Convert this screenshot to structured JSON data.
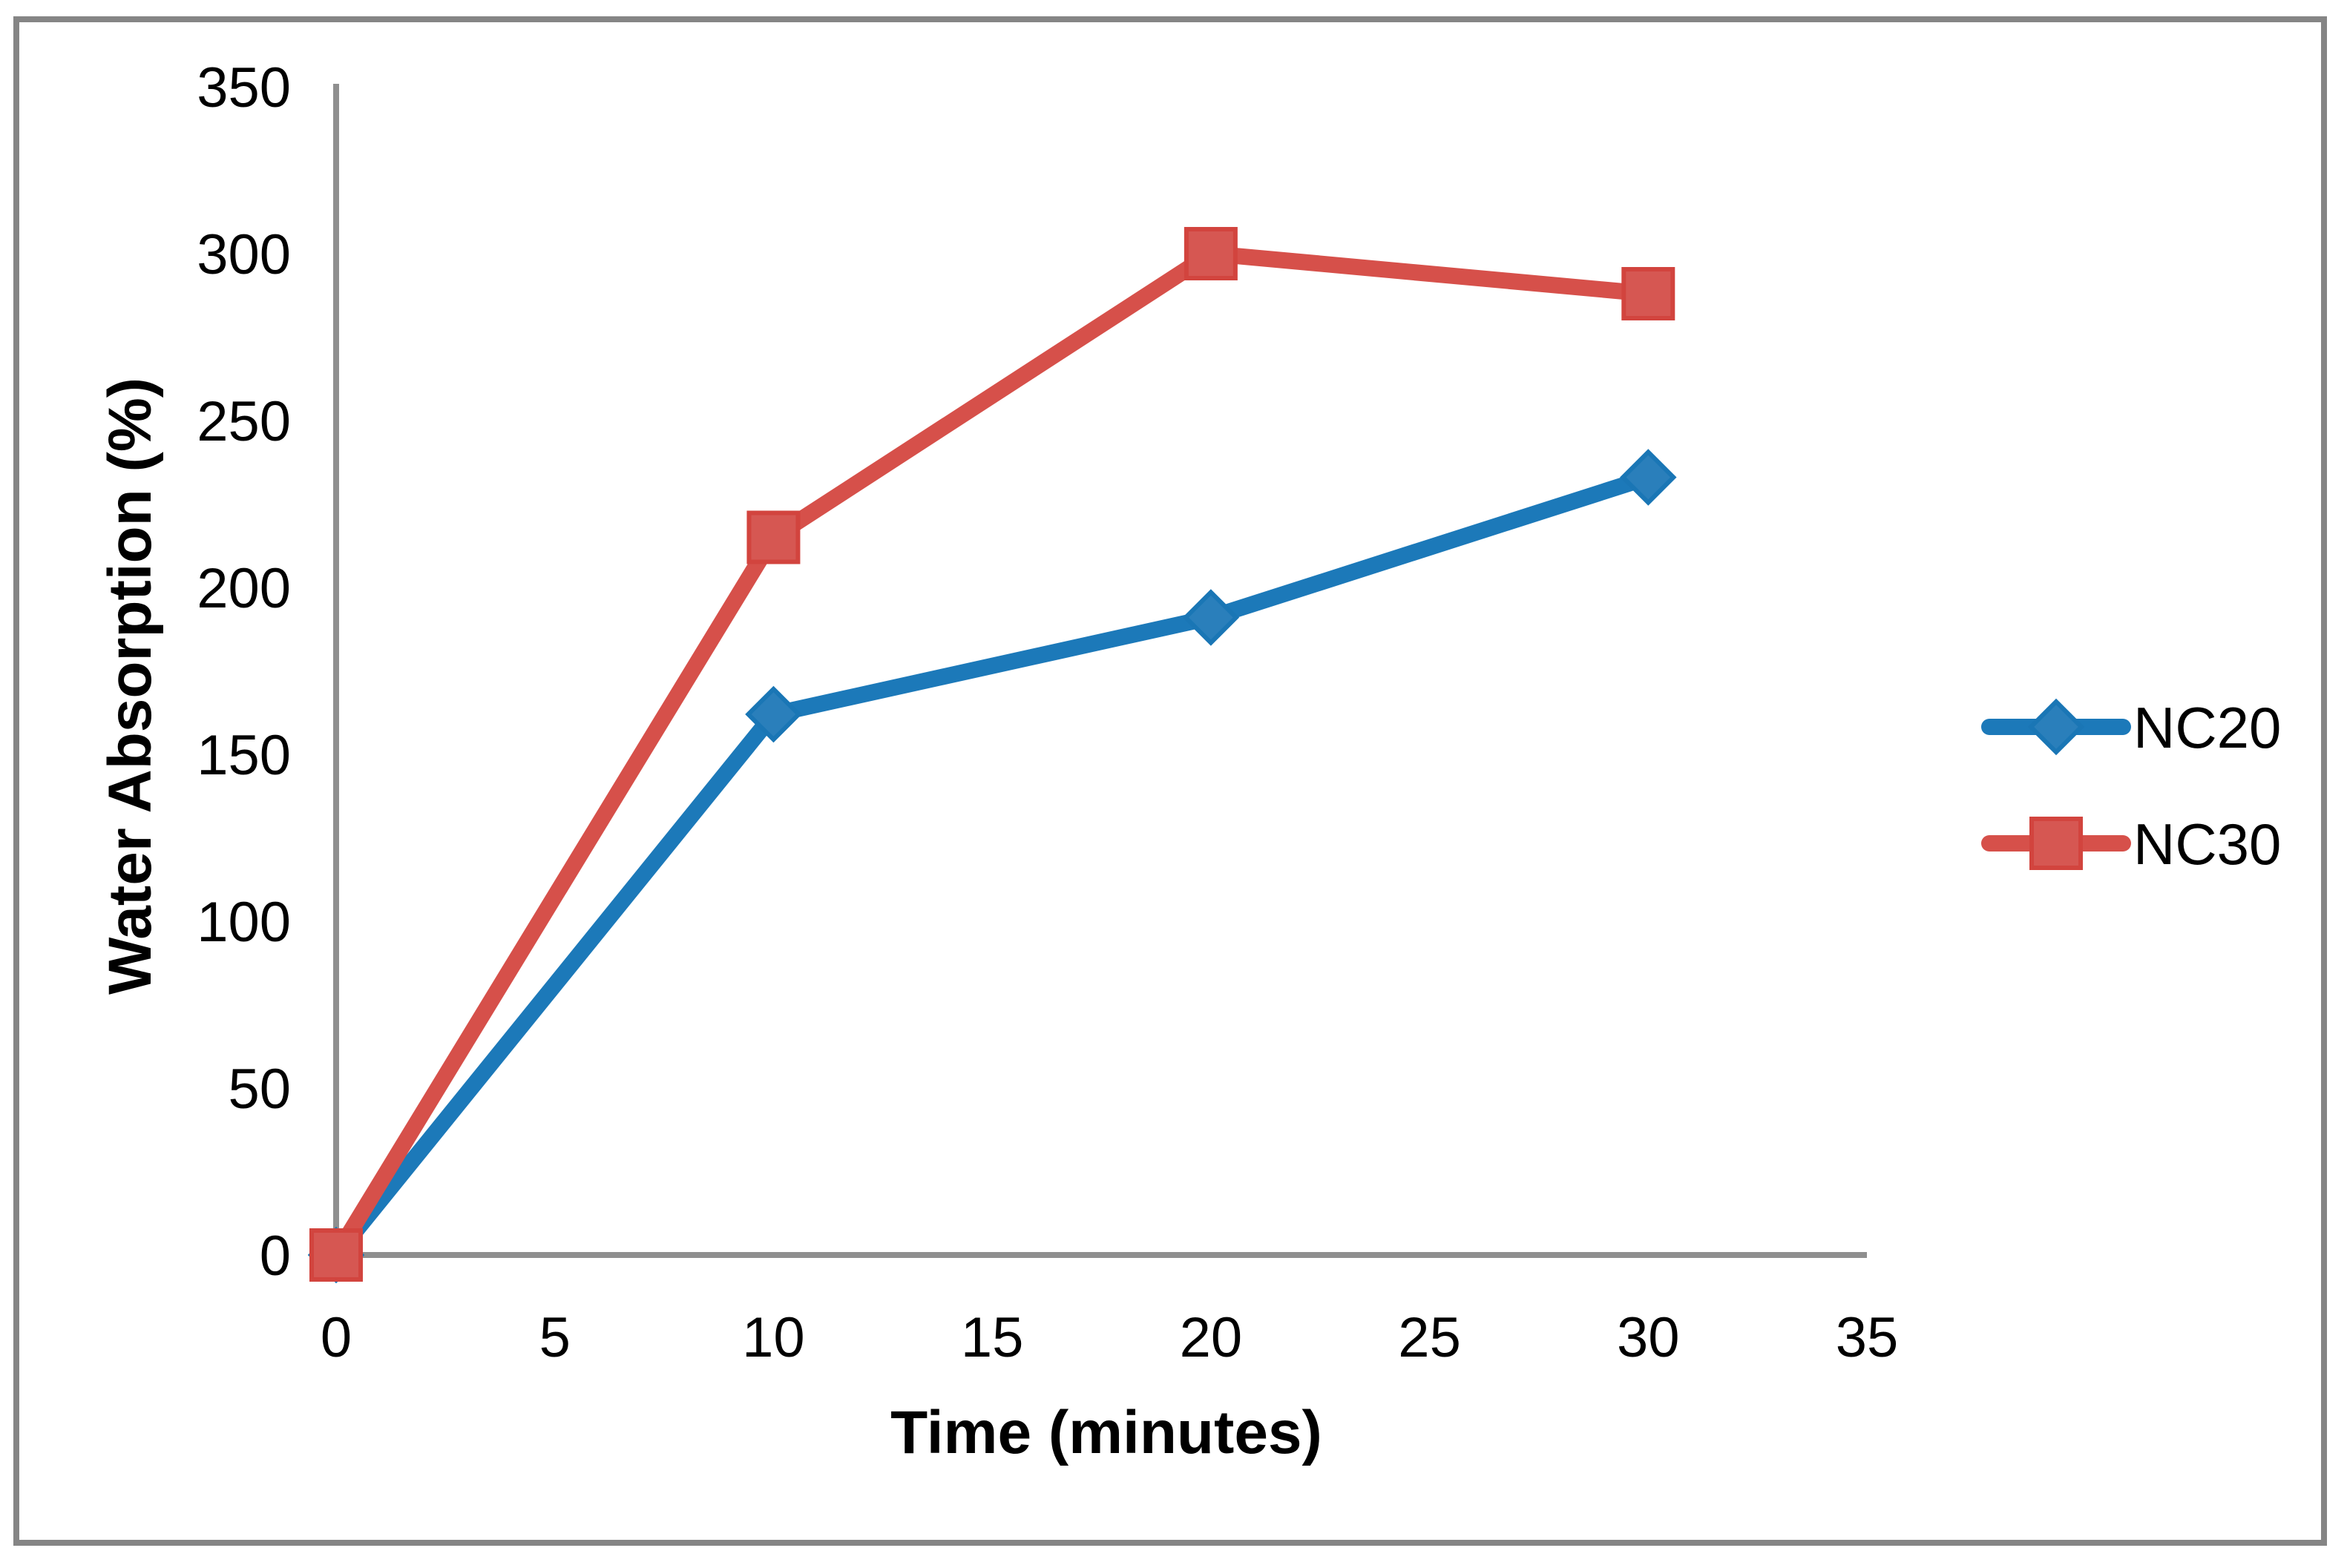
{
  "figure": {
    "border_color": "#858585",
    "background_color": "#ffffff",
    "axis_color": "#8f8f8f",
    "text_color": "#000000"
  },
  "chart_data": {
    "type": "line",
    "title": "",
    "xlabel": "Time (minutes)",
    "ylabel": "Water Absorption (%)",
    "x": [
      0,
      10,
      20,
      30
    ],
    "series": [
      {
        "name": "NC20",
        "marker": "diamond",
        "line_color": "#1c79b9",
        "marker_fill": "#2a7fbb",
        "marker_stroke": "#1a76b5",
        "values": [
          0,
          162,
          191,
          233
        ]
      },
      {
        "name": "NC30",
        "marker": "square",
        "line_color": "#d6504a",
        "marker_fill": "#d65752",
        "marker_stroke": "#d2443e",
        "values": [
          0,
          215,
          300,
          288
        ]
      }
    ],
    "xlim": [
      0,
      35
    ],
    "ylim": [
      0,
      350
    ],
    "x_ticks": [
      0,
      5,
      10,
      15,
      20,
      25,
      30,
      35
    ],
    "y_ticks": [
      0,
      50,
      100,
      150,
      200,
      250,
      300,
      350
    ],
    "grid": false,
    "legend_position": "right",
    "legend_entries": [
      "NC20",
      "NC30"
    ]
  }
}
